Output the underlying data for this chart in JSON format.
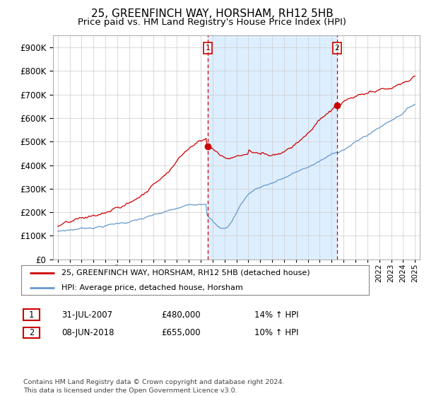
{
  "title": "25, GREENFINCH WAY, HORSHAM, RH12 5HB",
  "subtitle": "Price paid vs. HM Land Registry's House Price Index (HPI)",
  "property_color": "#cc0000",
  "hpi_color": "#6699cc",
  "vline_color": "#cc0000",
  "shade_color": "#ddeeff",
  "marker1_date": 2007.58,
  "marker1_value": 480000,
  "marker2_date": 2018.44,
  "marker2_value": 655000,
  "ylim": [
    0,
    950000
  ],
  "yticks": [
    0,
    100000,
    200000,
    300000,
    400000,
    500000,
    600000,
    700000,
    800000,
    900000
  ],
  "legend_property": "25, GREENFINCH WAY, HORSHAM, RH12 5HB (detached house)",
  "legend_hpi": "HPI: Average price, detached house, Horsham",
  "table_rows": [
    {
      "num": "1",
      "date": "31-JUL-2007",
      "price": "£480,000",
      "hpi": "14% ↑ HPI"
    },
    {
      "num": "2",
      "date": "08-JUN-2018",
      "price": "£655,000",
      "hpi": "10% ↑ HPI"
    }
  ],
  "footnote": "Contains HM Land Registry data © Crown copyright and database right 2024.\nThis data is licensed under the Open Government Licence v3.0.",
  "background_color": "#ffffff",
  "grid_color": "#cccccc"
}
